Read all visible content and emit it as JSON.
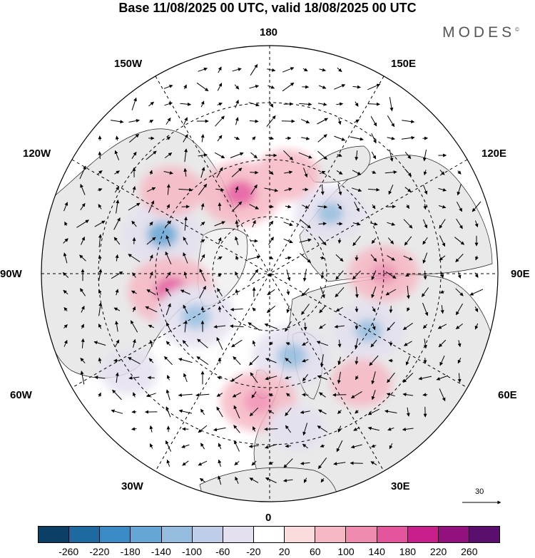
{
  "title": "Base 11/08/2025 00 UTC, valid 18/08/2025 00 UTC",
  "brand": {
    "name": "MODES",
    "mark": "©"
  },
  "longitude_labels": {
    "top": "180",
    "bottom": "0",
    "left": "90W",
    "right": "90E",
    "nw": "150W",
    "ne": "150E",
    "wnw": "120W",
    "ene": "120E",
    "wsw": "60W",
    "ese": "60E",
    "sw": "30W",
    "se": "30E"
  },
  "wind_scale": {
    "value": "30"
  },
  "colorbar": {
    "colors": [
      "#0b3f63",
      "#1e6aa0",
      "#3b8bc4",
      "#65a6d6",
      "#94bde0",
      "#bfcde8",
      "#e4e0ef",
      "#ffffff",
      "#fbdcdc",
      "#f6b8c4",
      "#f08bb0",
      "#e5559d",
      "#c71f8c",
      "#92117f",
      "#5a0f6e"
    ],
    "ticks": [
      "-260",
      "-220",
      "-180",
      "-140",
      "-100",
      "-60",
      "-20",
      "20",
      "60",
      "100",
      "140",
      "180",
      "220",
      "260"
    ]
  },
  "anomalies": [
    {
      "lon": -110,
      "lat": 50,
      "value": -150
    },
    {
      "lon": -80,
      "lat": 55,
      "value": 170
    },
    {
      "lon": -160,
      "lat": 60,
      "value": 150
    },
    {
      "lon": 170,
      "lat": 55,
      "value": 90
    },
    {
      "lon": -60,
      "lat": 60,
      "value": -140
    },
    {
      "lon": 135,
      "lat": 60,
      "value": -110
    },
    {
      "lon": 90,
      "lat": 50,
      "value": 110
    },
    {
      "lon": 60,
      "lat": 50,
      "value": -120
    },
    {
      "lon": 15,
      "lat": 60,
      "value": -140
    },
    {
      "lon": -5,
      "lat": 45,
      "value": 130
    },
    {
      "lon": 40,
      "lat": 40,
      "value": 70
    },
    {
      "lon": -55,
      "lat": 30,
      "value": -60
    },
    {
      "lon": 10,
      "lat": 35,
      "value": -60
    },
    {
      "lon": -130,
      "lat": 45,
      "value": 80
    }
  ]
}
